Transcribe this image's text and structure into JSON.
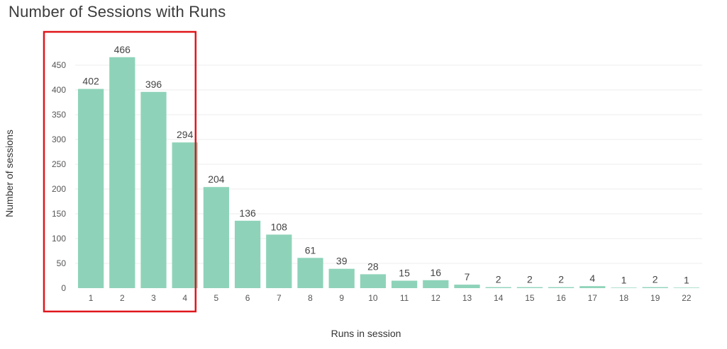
{
  "chart_data": {
    "type": "bar",
    "title": "Number of Sessions with Runs",
    "xlabel": "Runs in session",
    "ylabel": "Number of sessions",
    "categories": [
      "1",
      "2",
      "3",
      "4",
      "5",
      "6",
      "7",
      "8",
      "9",
      "10",
      "11",
      "12",
      "13",
      "14",
      "15",
      "16",
      "17",
      "18",
      "19",
      "22"
    ],
    "values": [
      402,
      466,
      396,
      294,
      204,
      136,
      108,
      61,
      39,
      28,
      15,
      16,
      7,
      2,
      2,
      2,
      4,
      1,
      2,
      1
    ],
    "ylim": [
      0,
      500
    ],
    "yticks": [
      0,
      50,
      100,
      150,
      200,
      250,
      300,
      350,
      400,
      450
    ],
    "grid": true,
    "bar_color": "#8ed3b9",
    "highlight": {
      "categories": [
        "1",
        "2",
        "3",
        "4"
      ],
      "color": "#e0161b"
    }
  }
}
